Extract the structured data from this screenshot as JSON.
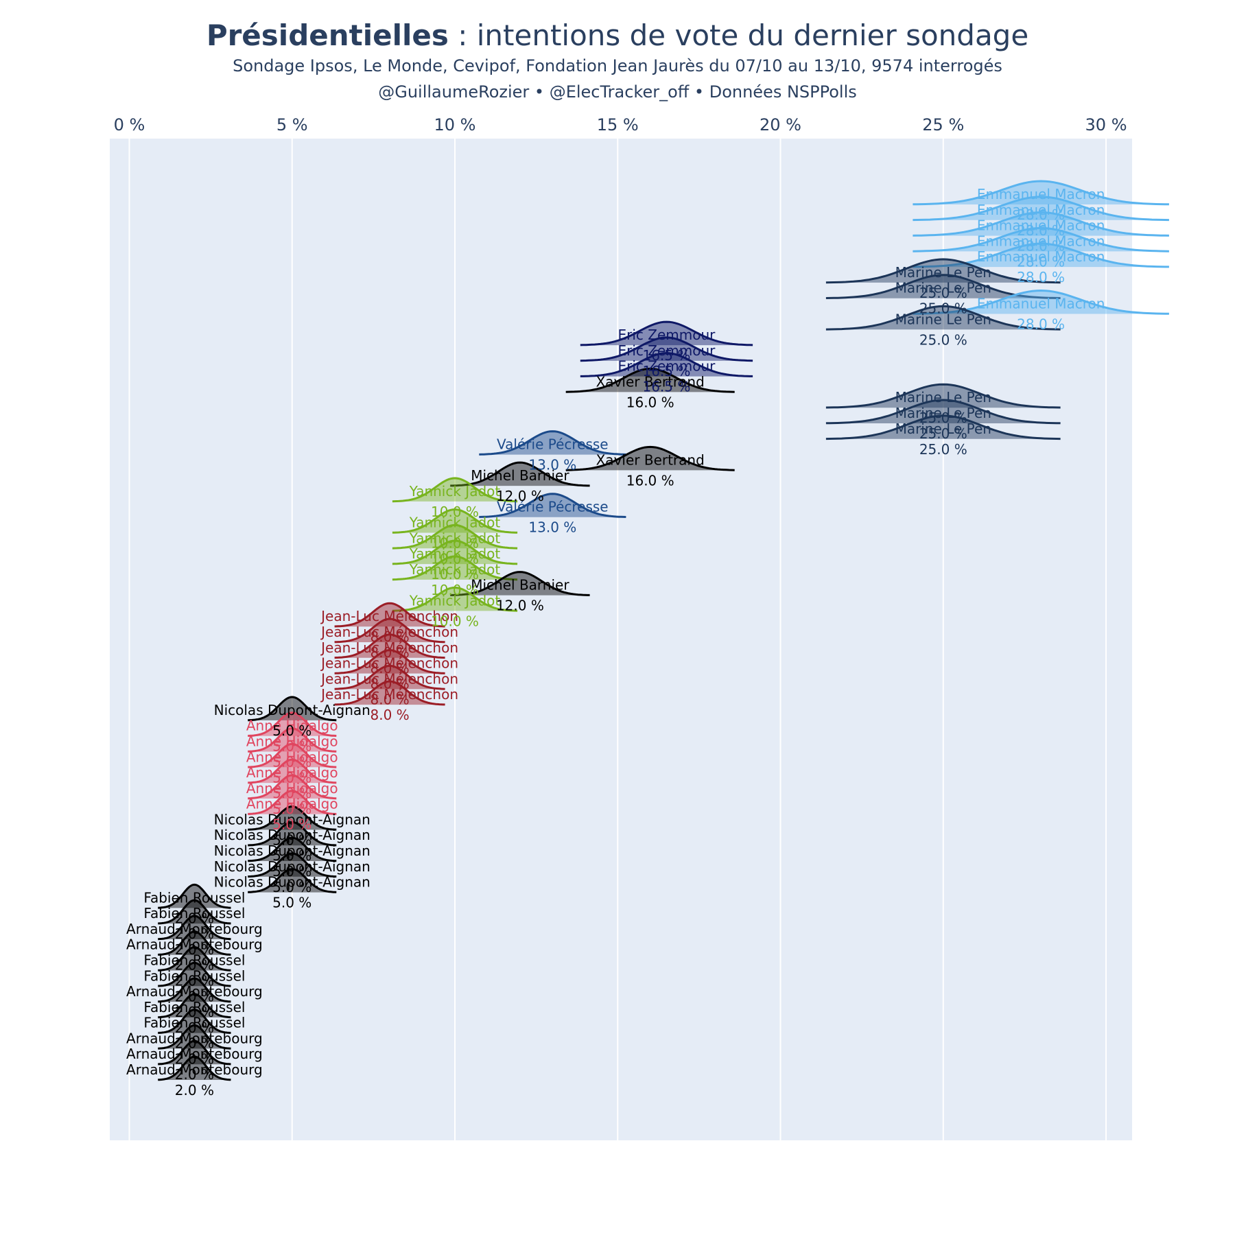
{
  "header": {
    "title_bold": "Présidentielles",
    "title_rest": " : intentions de vote du dernier sondage",
    "subtitle_line1": "Sondage Ipsos, Le Monde, Cevipof, Fondation Jean Jaurès du 07/10 au 13/10, 9574 interrogés",
    "subtitle_line2": "@GuillaumeRozier • @ElecTracker_off • Données NSPPolls"
  },
  "chart_data": {
    "type": "ridgeline",
    "x_unit": "%",
    "xlim": [
      -0.6,
      30.8
    ],
    "x_ticks": [
      0,
      5,
      10,
      15,
      20,
      25,
      30
    ],
    "x_tick_labels": [
      "0 %",
      "5 %",
      "10 %",
      "15 %",
      "20 %",
      "25 %",
      "30 %"
    ],
    "x_axis_position": "top",
    "background": "#e5ecf6",
    "grid": true,
    "traces": [
      {
        "name": "Emmanuel Macron",
        "value": 28.0,
        "label": "28.0 %",
        "color": "#5ab4ef"
      },
      {
        "name": "Emmanuel Macron",
        "value": 28.0,
        "label": "28.0 %",
        "color": "#5ab4ef"
      },
      {
        "name": "Emmanuel Macron",
        "value": 28.0,
        "label": "28.0 %",
        "color": "#5ab4ef"
      },
      {
        "name": "Emmanuel Macron",
        "value": 28.0,
        "label": "28.0 %",
        "color": "#5ab4ef"
      },
      {
        "name": "Emmanuel Macron",
        "value": 28.0,
        "label": "28.0 %",
        "color": "#5ab4ef"
      },
      {
        "name": "Marine Le Pen",
        "value": 25.0,
        "label": "25.0 %",
        "color": "#1c3558"
      },
      {
        "name": "Marine Le Pen",
        "value": 25.0,
        "label": "25.0 %",
        "color": "#1c3558"
      },
      {
        "name": "Emmanuel Macron",
        "value": 28.0,
        "label": "28.0 %",
        "color": "#5ab4ef"
      },
      {
        "name": "Marine Le Pen",
        "value": 25.0,
        "label": "25.0 %",
        "color": "#1c3558"
      },
      {
        "name": "Eric Zemmour",
        "value": 16.5,
        "label": "16.5 %",
        "color": "#0e1866"
      },
      {
        "name": "Eric Zemmour",
        "value": 16.5,
        "label": "16.5 %",
        "color": "#0e1866"
      },
      {
        "name": "Eric Zemmour",
        "value": 16.5,
        "label": "16.5 %",
        "color": "#0e1866"
      },
      {
        "name": "Xavier Bertrand",
        "value": 16.0,
        "label": "16.0 %",
        "color": "#000000"
      },
      {
        "name": "Marine Le Pen",
        "value": 25.0,
        "label": "25.0 %",
        "color": "#1c3558"
      },
      {
        "name": "Marine Le Pen",
        "value": 25.0,
        "label": "25.0 %",
        "color": "#1c3558"
      },
      {
        "name": "Marine Le Pen",
        "value": 25.0,
        "label": "25.0 %",
        "color": "#1c3558"
      },
      {
        "name": "Valérie Pécresse",
        "value": 13.0,
        "label": "13.0 %",
        "color": "#1b4a8a"
      },
      {
        "name": "Xavier Bertrand",
        "value": 16.0,
        "label": "16.0 %",
        "color": "#000000"
      },
      {
        "name": "Michel Barnier",
        "value": 12.0,
        "label": "12.0 %",
        "color": "#000000"
      },
      {
        "name": "Yannick Jadot",
        "value": 10.0,
        "label": "10.0 %",
        "color": "#78b41e"
      },
      {
        "name": "Valérie Pécresse",
        "value": 13.0,
        "label": "13.0 %",
        "color": "#1b4a8a"
      },
      {
        "name": "Yannick Jadot",
        "value": 10.0,
        "label": "10.0 %",
        "color": "#78b41e"
      },
      {
        "name": "Yannick Jadot",
        "value": 10.0,
        "label": "10.0 %",
        "color": "#78b41e"
      },
      {
        "name": "Yannick Jadot",
        "value": 10.0,
        "label": "10.0 %",
        "color": "#78b41e"
      },
      {
        "name": "Yannick Jadot",
        "value": 10.0,
        "label": "10.0 %",
        "color": "#78b41e"
      },
      {
        "name": "Michel Barnier",
        "value": 12.0,
        "label": "12.0 %",
        "color": "#000000"
      },
      {
        "name": "Yannick Jadot",
        "value": 10.0,
        "label": "10.0 %",
        "color": "#78b41e"
      },
      {
        "name": "Jean-Luc Mélenchon",
        "value": 8.0,
        "label": "8.0 %",
        "color": "#9b1d26"
      },
      {
        "name": "Jean-Luc Mélenchon",
        "value": 8.0,
        "label": "8.0 %",
        "color": "#9b1d26"
      },
      {
        "name": "Jean-Luc Mélenchon",
        "value": 8.0,
        "label": "8.0 %",
        "color": "#9b1d26"
      },
      {
        "name": "Jean-Luc Mélenchon",
        "value": 8.0,
        "label": "8.0 %",
        "color": "#9b1d26"
      },
      {
        "name": "Jean-Luc Mélenchon",
        "value": 8.0,
        "label": "8.0 %",
        "color": "#9b1d26"
      },
      {
        "name": "Jean-Luc Mélenchon",
        "value": 8.0,
        "label": "8.0 %",
        "color": "#9b1d26"
      },
      {
        "name": "Nicolas Dupont-Aignan",
        "value": 5.0,
        "label": "5.0 %",
        "color": "#000000"
      },
      {
        "name": "Anne Hidalgo",
        "value": 5.0,
        "label": "5.0 %",
        "color": "#e0455f"
      },
      {
        "name": "Anne Hidalgo",
        "value": 5.0,
        "label": "5.0 %",
        "color": "#e0455f"
      },
      {
        "name": "Anne Hidalgo",
        "value": 5.0,
        "label": "5.0 %",
        "color": "#e0455f"
      },
      {
        "name": "Anne Hidalgo",
        "value": 5.0,
        "label": "5.0 %",
        "color": "#e0455f"
      },
      {
        "name": "Anne Hidalgo",
        "value": 5.0,
        "label": "5.0 %",
        "color": "#e0455f"
      },
      {
        "name": "Anne Hidalgo",
        "value": 5.0,
        "label": "5.0 %",
        "color": "#e0455f"
      },
      {
        "name": "Nicolas Dupont-Aignan",
        "value": 5.0,
        "label": "5.0 %",
        "color": "#000000"
      },
      {
        "name": "Nicolas Dupont-Aignan",
        "value": 5.0,
        "label": "5.0 %",
        "color": "#000000"
      },
      {
        "name": "Nicolas Dupont-Aignan",
        "value": 5.0,
        "label": "5.0 %",
        "color": "#000000"
      },
      {
        "name": "Nicolas Dupont-Aignan",
        "value": 5.0,
        "label": "5.0 %",
        "color": "#000000"
      },
      {
        "name": "Nicolas Dupont-Aignan",
        "value": 5.0,
        "label": "5.0 %",
        "color": "#000000"
      },
      {
        "name": "Fabien Roussel",
        "value": 2.0,
        "label": "2.0 %",
        "color": "#000000"
      },
      {
        "name": "Fabien Roussel",
        "value": 2.0,
        "label": "2.0 %",
        "color": "#000000"
      },
      {
        "name": "Arnaud Montebourg",
        "value": 2.0,
        "label": "2.0 %",
        "color": "#000000"
      },
      {
        "name": "Arnaud Montebourg",
        "value": 2.0,
        "label": "2.0 %",
        "color": "#000000"
      },
      {
        "name": "Fabien Roussel",
        "value": 2.0,
        "label": "2.0 %",
        "color": "#000000"
      },
      {
        "name": "Fabien Roussel",
        "value": 2.0,
        "label": "2.0 %",
        "color": "#000000"
      },
      {
        "name": "Arnaud Montebourg",
        "value": 2.0,
        "label": "2.0 %",
        "color": "#000000"
      },
      {
        "name": "Fabien Roussel",
        "value": 2.0,
        "label": "2.0 %",
        "color": "#000000"
      },
      {
        "name": "Fabien Roussel",
        "value": 2.0,
        "label": "2.0 %",
        "color": "#000000"
      },
      {
        "name": "Arnaud Montebourg",
        "value": 2.0,
        "label": "2.0 %",
        "color": "#000000"
      },
      {
        "name": "Arnaud Montebourg",
        "value": 2.0,
        "label": "2.0 %",
        "color": "#000000"
      },
      {
        "name": "Arnaud Montebourg",
        "value": 2.0,
        "label": "2.0 %",
        "color": "#000000"
      }
    ]
  }
}
